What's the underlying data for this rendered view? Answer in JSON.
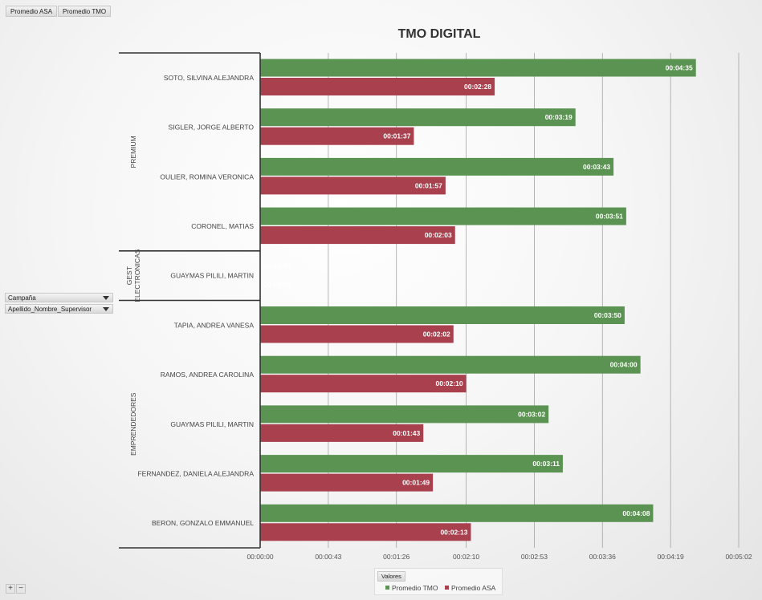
{
  "pivot": {
    "field_buttons": [
      "Promedio ASA",
      "Promedio TMO"
    ],
    "row_fields": [
      "Campaña",
      "Apellido_Nombre_Supervisor"
    ],
    "legend_title": "Valores",
    "zoom_in": "+",
    "zoom_out": "−"
  },
  "colors": {
    "tmo": "#5b9452",
    "asa": "#a8404d"
  },
  "chart_data": {
    "type": "bar",
    "orientation": "horizontal",
    "title": "TMO DIGITAL",
    "xlabel": "",
    "ylabel": "",
    "x_ticks": [
      "00:00:00",
      "00:00:43",
      "00:01:26",
      "00:02:10",
      "00:02:53",
      "00:03:36",
      "00:04:19",
      "00:05:02"
    ],
    "xlim_seconds": [
      0,
      302
    ],
    "grid": "vertical",
    "legend_position": "bottom",
    "groups": [
      {
        "name": "PREMIUM",
        "count": 4
      },
      {
        "name": "GEST ELECTRONICAS",
        "lines": [
          "GEST",
          "ELECTRONICAS"
        ],
        "count": 1
      },
      {
        "name": "EMPRENDEDORES",
        "count": 5
      }
    ],
    "categories": [
      "SOTO, SILVINA ALEJANDRA",
      "SIGLER, JORGE ALBERTO",
      "OULIER, ROMINA VERONICA",
      "CORONEL, MATIAS",
      "GUAYMAS PILILI, MARTIN",
      "TAPIA, ANDREA VANESA",
      "RAMOS, ANDREA CAROLINA",
      "GUAYMAS PILILI, MARTIN",
      "FERNANDEZ, DANIELA ALEJANDRA",
      "BERON, GONZALO EMMANUEL"
    ],
    "series": [
      {
        "name": "Promedio TMO",
        "values": [
          "00:04:35",
          "00:03:19",
          "00:03:43",
          "00:03:51",
          "00:00:00",
          "00:03:50",
          "00:04:00",
          "00:03:02",
          "00:03:11",
          "00:04:08"
        ]
      },
      {
        "name": "Promedio ASA",
        "values": [
          "00:02:28",
          "00:01:37",
          "00:01:57",
          "00:02:03",
          "00:00:00",
          "00:02:02",
          "00:02:10",
          "00:01:43",
          "00:01:49",
          "00:02:13"
        ]
      }
    ]
  }
}
